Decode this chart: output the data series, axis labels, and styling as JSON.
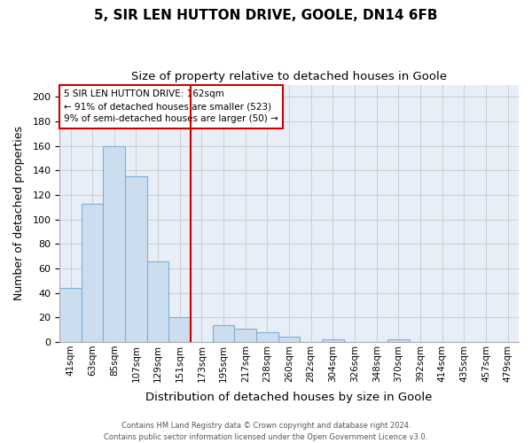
{
  "title1": "5, SIR LEN HUTTON DRIVE, GOOLE, DN14 6FB",
  "title2": "Size of property relative to detached houses in Goole",
  "xlabel": "Distribution of detached houses by size in Goole",
  "ylabel": "Number of detached properties",
  "bin_labels": [
    "41sqm",
    "63sqm",
    "85sqm",
    "107sqm",
    "129sqm",
    "151sqm",
    "173sqm",
    "195sqm",
    "217sqm",
    "238sqm",
    "260sqm",
    "282sqm",
    "304sqm",
    "326sqm",
    "348sqm",
    "370sqm",
    "392sqm",
    "414sqm",
    "435sqm",
    "457sqm",
    "479sqm"
  ],
  "bar_values": [
    44,
    113,
    160,
    135,
    66,
    20,
    0,
    14,
    11,
    8,
    4,
    0,
    2,
    0,
    0,
    2,
    0,
    0,
    0,
    0,
    0
  ],
  "bar_color": "#ccddf0",
  "bar_edge_color": "#7ab0d8",
  "vline_x_index": 6,
  "vline_color": "#cc0000",
  "annotation_line1": "5 SIR LEN HUTTON DRIVE: 162sqm",
  "annotation_line2": "← 91% of detached houses are smaller (523)",
  "annotation_line3": "9% of semi-detached houses are larger (50) →",
  "annotation_box_color": "white",
  "annotation_box_edge": "#cc0000",
  "ylim": [
    0,
    210
  ],
  "yticks": [
    0,
    20,
    40,
    60,
    80,
    100,
    120,
    140,
    160,
    180,
    200
  ],
  "grid_color": "#cccccc",
  "bg_color": "#e8eef8",
  "footer1": "Contains HM Land Registry data © Crown copyright and database right 2024.",
  "footer2": "Contains public sector information licensed under the Open Government Licence v3.0.",
  "title1_fontsize": 11,
  "title2_fontsize": 9.5,
  "ylabel_fontsize": 9,
  "xlabel_fontsize": 9.5,
  "tick_fontsize": 8,
  "xtick_fontsize": 7.5,
  "annotation_fontsize": 7.5,
  "footer_fontsize": 6
}
